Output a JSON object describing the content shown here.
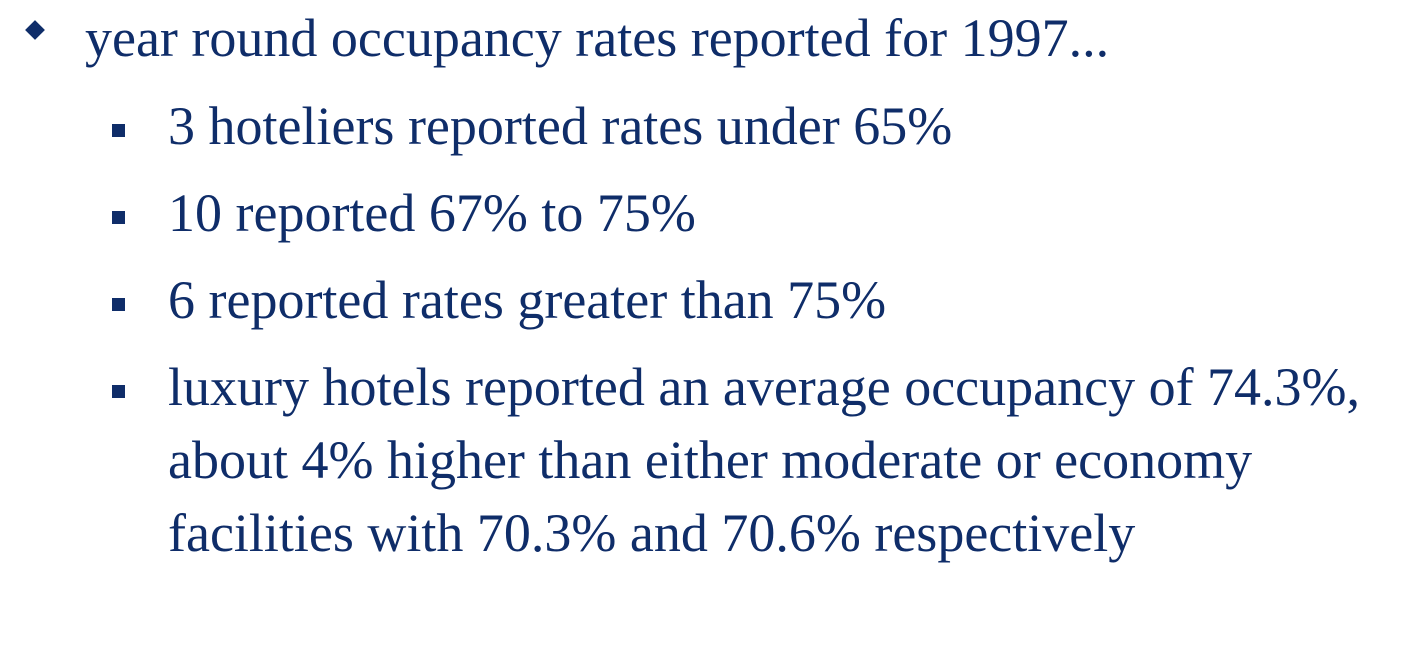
{
  "bullet": "year round occupancy rates reported for 1997...",
  "sub_bullets": [
    "3 hoteliers reported rates under 65%",
    "10 reported 67% to 75%",
    "6 reported rates greater than 75%",
    "luxury hotels reported an average occupancy of 74.3%, about 4% higher than either moderate or economy facilities with 70.3% and 70.6% respectively"
  ]
}
